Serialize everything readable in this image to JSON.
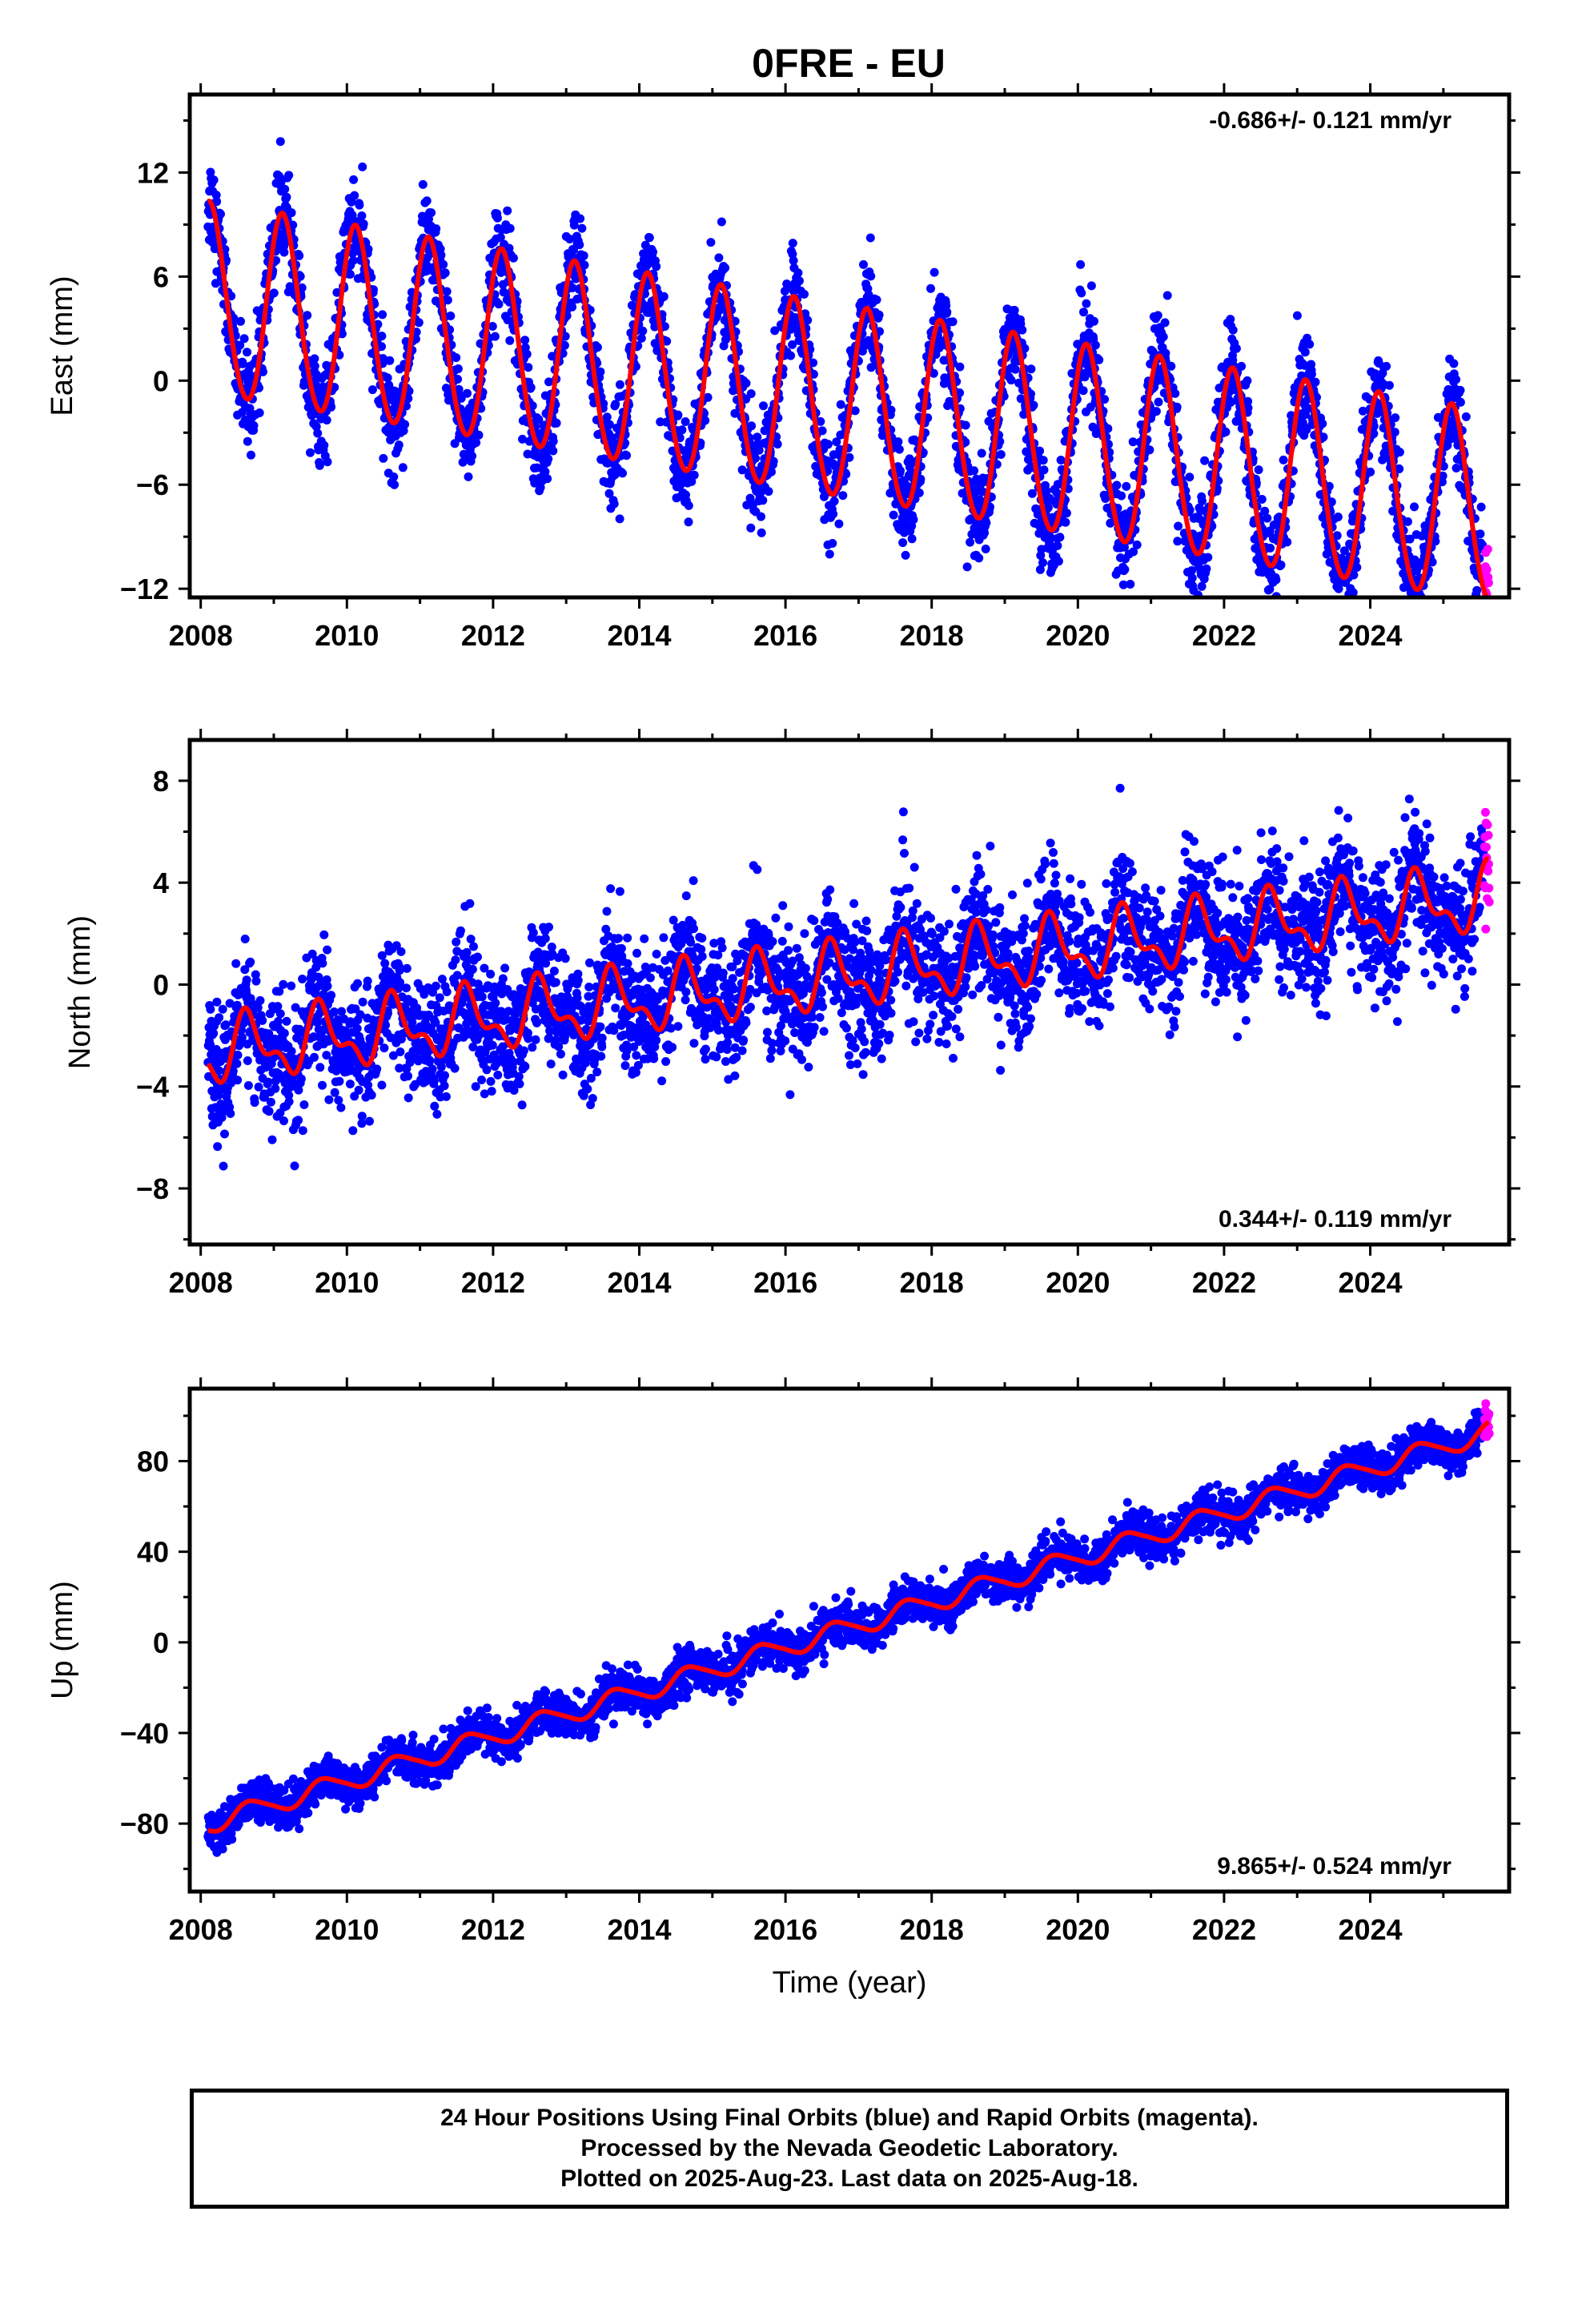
{
  "chart_data": [
    {
      "type": "scatter",
      "panel": "east",
      "title": "0FRE - EU",
      "ylabel": "East (mm)",
      "xlabel": "",
      "rate_text": "-0.686+/- 0.121 mm/yr",
      "xlim": [
        2007.85,
        2025.9
      ],
      "ylim": [
        -12.5,
        16.5
      ],
      "xticks": [
        "2008",
        "2010",
        "2012",
        "2014",
        "2016",
        "2018",
        "2020",
        "2022",
        "2024"
      ],
      "yticks": [
        "-12",
        "-6",
        "0",
        "6",
        "12"
      ],
      "grid": false,
      "model": {
        "color": "#ff0000",
        "start": 2008.1,
        "end": 2025.62,
        "offset_at_2008": 4.6,
        "rate": -0.686,
        "annual_cos": 3.9,
        "annual_sin": 3.9,
        "semiannual_cos": 0.2,
        "semiannual_sin": 0.3
      },
      "final_orbits": {
        "color": "#0000ff",
        "start": 2008.1,
        "end": 2025.55,
        "noise": 1.4
      },
      "rapid_orbits": {
        "color": "#ff00ff",
        "start": 2025.56,
        "end": 2025.63,
        "noise": 1.4
      }
    },
    {
      "type": "scatter",
      "panel": "north",
      "title": "",
      "ylabel": "North (mm)",
      "xlabel": "",
      "rate_text": "0.344+/- 0.119 mm/yr",
      "xlim": [
        2007.85,
        2025.9
      ],
      "ylim": [
        -10.2,
        9.6
      ],
      "xticks": [
        "2008",
        "2010",
        "2012",
        "2014",
        "2016",
        "2018",
        "2020",
        "2022",
        "2024"
      ],
      "yticks": [
        "-8",
        "-4",
        "0",
        "4",
        "8"
      ],
      "grid": false,
      "model": {
        "color": "#ff0000",
        "start": 2008.1,
        "end": 2025.62,
        "offset_at_2008": -2.7,
        "rate": 0.344,
        "annual_cos": -0.6,
        "annual_sin": -0.9,
        "semiannual_cos": 0.3,
        "semiannual_sin": 0.5
      },
      "final_orbits": {
        "color": "#0000ff",
        "start": 2008.1,
        "end": 2025.55,
        "noise": 1.2
      },
      "rapid_orbits": {
        "color": "#ff00ff",
        "start": 2025.56,
        "end": 2025.63,
        "noise": 1.2
      }
    },
    {
      "type": "scatter",
      "panel": "up",
      "title": "",
      "ylabel": "Up (mm)",
      "xlabel": "Time (year)",
      "rate_text": "9.865+/- 0.524 mm/yr",
      "xlim": [
        2007.85,
        2025.9
      ],
      "ylim": [
        -110,
        112
      ],
      "xticks": [
        "2008",
        "2010",
        "2012",
        "2014",
        "2016",
        "2018",
        "2020",
        "2022",
        "2024"
      ],
      "yticks": [
        "-80",
        "-40",
        "0",
        "40",
        "80"
      ],
      "grid": false,
      "model": {
        "color": "#ff0000",
        "start": 2008.1,
        "end": 2025.62,
        "offset_at_2008": -81,
        "rate": 9.865,
        "annual_cos": -1.5,
        "annual_sin": -4.0,
        "semiannual_cos": 0.5,
        "semiannual_sin": 0.5
      },
      "final_orbits": {
        "color": "#0000ff",
        "start": 2008.1,
        "end": 2025.55,
        "noise": 4.5
      },
      "rapid_orbits": {
        "color": "#ff00ff",
        "start": 2025.56,
        "end": 2025.63,
        "noise": 4.5
      }
    }
  ],
  "footer": {
    "line1": "24 Hour Positions Using Final Orbits (blue) and Rapid Orbits (magenta).",
    "line2": "Processed by the Nevada Geodetic Laboratory.",
    "line3": "Plotted on 2025-Aug-23. Last data on 2025-Aug-18."
  }
}
